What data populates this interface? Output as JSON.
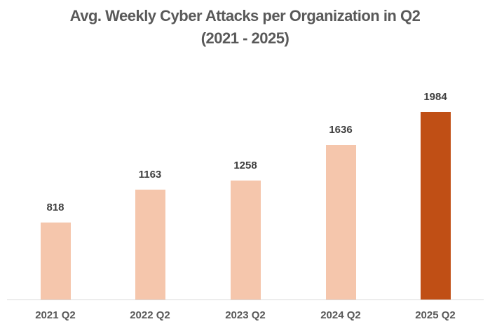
{
  "chart_data": {
    "type": "bar",
    "title": "Avg. Weekly Cyber Attacks per Organization in Q2",
    "subtitle": "(2021 - 2025)",
    "categories": [
      "2021 Q2",
      "2022 Q2",
      "2023 Q2",
      "2024 Q2",
      "2025 Q2"
    ],
    "values": [
      818,
      1163,
      1258,
      1636,
      1984
    ],
    "xlabel": "",
    "ylabel": "",
    "ylim": [
      0,
      1984
    ],
    "grid": false,
    "legend": "none",
    "data_labels": true,
    "colors": [
      "#f5c6ac",
      "#f5c6ac",
      "#f5c6ac",
      "#f5c6ac",
      "#c04f15"
    ]
  },
  "title_line1": "Avg. Weekly Cyber Attacks per Organization in Q2",
  "title_line2": "(2021 - 2025)",
  "colors": {
    "bar_default": "#f5c6ac",
    "bar_highlight": "#c04f15",
    "axis": "#d9d9d9"
  }
}
